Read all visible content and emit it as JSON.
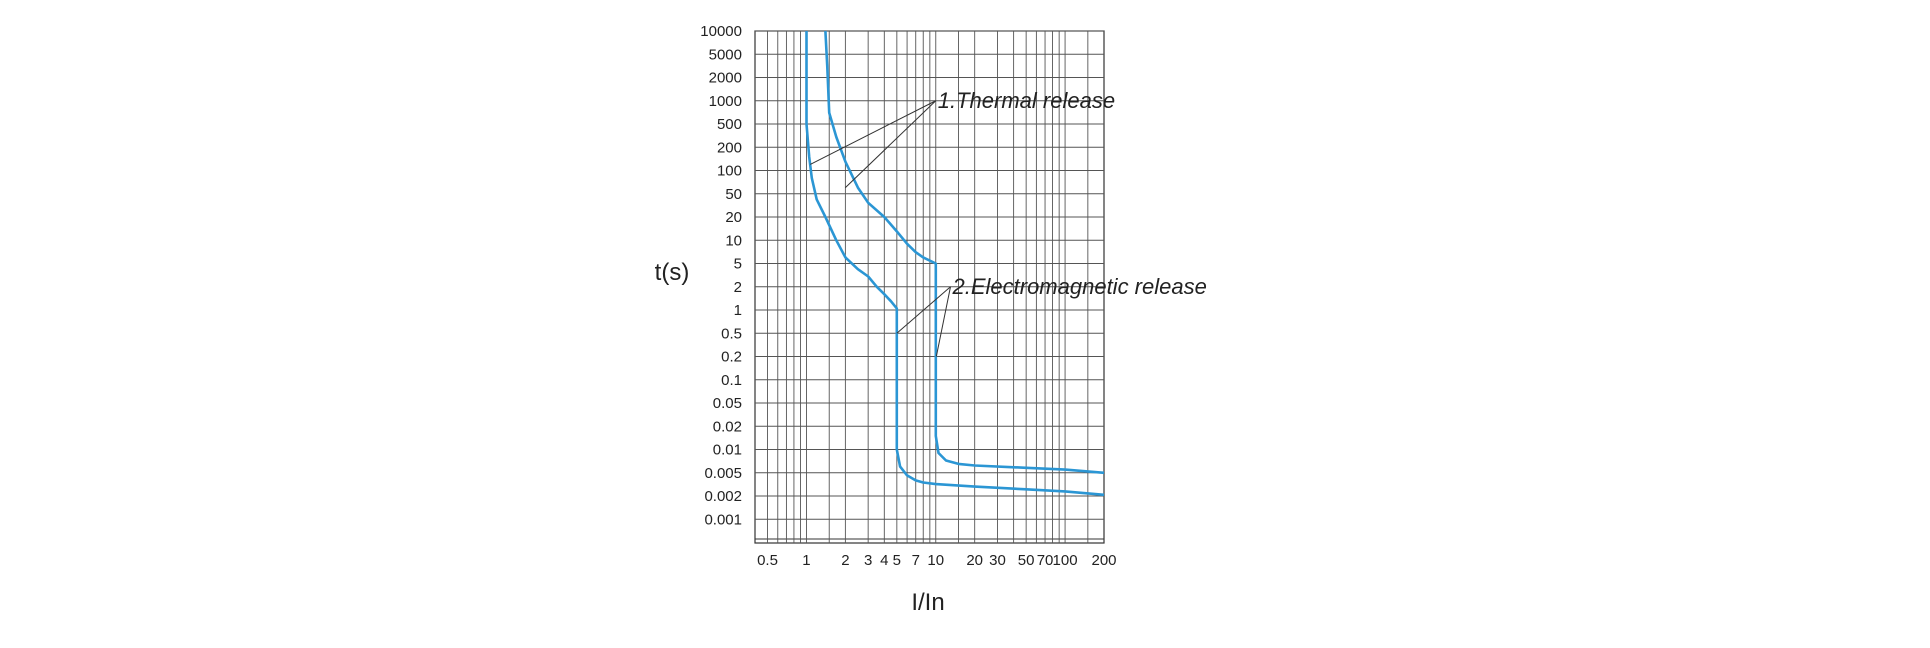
{
  "chart_data": {
    "type": "line",
    "title": "",
    "xlabel": "I/In",
    "ylabel": "t(s)",
    "xscale": "log",
    "yscale": "log",
    "grid": true,
    "xlim": [
      0.4,
      200
    ],
    "ylim": [
      0.0005,
      10000
    ],
    "x_ticks": [
      {
        "value": 0.5,
        "label": "0.5"
      },
      {
        "value": 1,
        "label": "1"
      },
      {
        "value": 2,
        "label": "2"
      },
      {
        "value": 3,
        "label": "3"
      },
      {
        "value": 4,
        "label": "4"
      },
      {
        "value": 5,
        "label": "5"
      },
      {
        "value": 7,
        "label": "7"
      },
      {
        "value": 10,
        "label": "10"
      },
      {
        "value": 20,
        "label": "20"
      },
      {
        "value": 30,
        "label": "30"
      },
      {
        "value": 50,
        "label": "50"
      },
      {
        "value": 70,
        "label": "70"
      },
      {
        "value": 100,
        "label": "100"
      },
      {
        "value": 200,
        "label": "200"
      }
    ],
    "y_ticks": [
      {
        "value": 10000,
        "label": "10000"
      },
      {
        "value": 5000,
        "label": "5000"
      },
      {
        "value": 2000,
        "label": "2000"
      },
      {
        "value": 1000,
        "label": "1000"
      },
      {
        "value": 500,
        "label": "500"
      },
      {
        "value": 200,
        "label": "200"
      },
      {
        "value": 100,
        "label": "100"
      },
      {
        "value": 50,
        "label": "50"
      },
      {
        "value": 20,
        "label": "20"
      },
      {
        "value": 10,
        "label": "10"
      },
      {
        "value": 5,
        "label": "5"
      },
      {
        "value": 2,
        "label": "2"
      },
      {
        "value": 1,
        "label": "1"
      },
      {
        "value": 0.5,
        "label": "0.5"
      },
      {
        "value": 0.2,
        "label": "0.2"
      },
      {
        "value": 0.1,
        "label": "0.1"
      },
      {
        "value": 0.05,
        "label": "0.05"
      },
      {
        "value": 0.02,
        "label": "0.02"
      },
      {
        "value": 0.01,
        "label": "0.01"
      },
      {
        "value": 0.005,
        "label": "0.005"
      },
      {
        "value": 0.002,
        "label": "0.002"
      },
      {
        "value": 0.001,
        "label": "0.001"
      }
    ],
    "series_color": "#2b96d4",
    "series": [
      {
        "points": [
          [
            1,
            10000
          ],
          [
            1,
            2000
          ],
          [
            1,
            500
          ],
          [
            1.05,
            150
          ],
          [
            1.1,
            80
          ],
          [
            1.2,
            40
          ],
          [
            1.4,
            20
          ],
          [
            1.7,
            10
          ],
          [
            2,
            6
          ],
          [
            2.5,
            4
          ],
          [
            3,
            3
          ],
          [
            3.5,
            2
          ],
          [
            4,
            1.6
          ],
          [
            4.5,
            1.3
          ],
          [
            5,
            1.05
          ],
          [
            5,
            0.01
          ],
          [
            5.3,
            0.006
          ],
          [
            6,
            0.0045
          ],
          [
            7,
            0.0037
          ],
          [
            8,
            0.0034
          ],
          [
            10,
            0.0032
          ],
          [
            20,
            0.0029
          ],
          [
            50,
            0.0026
          ],
          [
            100,
            0.0024
          ],
          [
            200,
            0.0021
          ]
        ]
      },
      {
        "points": [
          [
            1.4,
            10000
          ],
          [
            1.45,
            3000
          ],
          [
            1.5,
            700
          ],
          [
            1.7,
            300
          ],
          [
            2,
            130
          ],
          [
            2.5,
            60
          ],
          [
            3,
            35
          ],
          [
            4,
            20
          ],
          [
            5,
            13
          ],
          [
            6,
            9
          ],
          [
            7,
            7
          ],
          [
            8,
            6
          ],
          [
            10,
            5
          ],
          [
            10,
            0.015
          ],
          [
            10.5,
            0.009
          ],
          [
            12,
            0.0072
          ],
          [
            15,
            0.0065
          ],
          [
            20,
            0.0062
          ],
          [
            50,
            0.0058
          ],
          [
            100,
            0.0055
          ],
          [
            200,
            0.005
          ]
        ]
      }
    ],
    "annotations": [
      {
        "text": "1.Thermal release",
        "anchor": [
          10,
          1000
        ],
        "targets": [
          [
            1.07,
            120
          ],
          [
            2,
            60
          ]
        ]
      },
      {
        "text": "2.Electromagnetic release",
        "anchor": [
          13,
          2
        ],
        "targets": [
          [
            5,
            0.5
          ],
          [
            10.1,
            0.2
          ]
        ]
      }
    ]
  }
}
